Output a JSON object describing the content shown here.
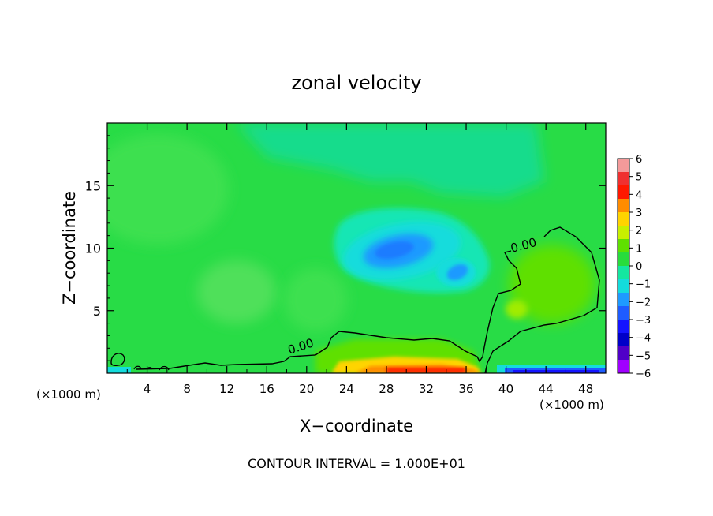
{
  "chart_data": {
    "type": "heatmap",
    "title": "zonal velocity",
    "xlabel": "X−coordinate",
    "ylabel": "Z−coordinate",
    "x_unit_left": "(×1000 m)",
    "x_unit_right": "(×1000 m)",
    "footer": "CONTOUR INTERVAL = 1.000E+01",
    "xlim": [
      0,
      50
    ],
    "ylim": [
      0,
      20
    ],
    "x_ticks": [
      4,
      8,
      12,
      16,
      20,
      24,
      28,
      32,
      36,
      40,
      44,
      48
    ],
    "x_tick_labels": [
      "4",
      "8",
      "12",
      "16",
      "20",
      "24",
      "28",
      "32",
      "36",
      "40",
      "44",
      "48"
    ],
    "y_ticks": [
      5,
      10,
      15
    ],
    "y_tick_labels": [
      "5",
      "10",
      "15"
    ],
    "colorbar": {
      "values": [
        6,
        5,
        4,
        3,
        2,
        1,
        0,
        -1,
        -2,
        -3,
        -4,
        -5,
        -6
      ],
      "labels": [
        "6",
        "5",
        "4",
        "3",
        "2",
        "1",
        "0",
        "−1",
        "−2",
        "−3",
        "−4",
        "−5",
        "−6"
      ],
      "colors": [
        "#f49a9a",
        "#f03030",
        "#ff1800",
        "#ff8c00",
        "#ffd400",
        "#c8f000",
        "#5fe000",
        "#28dc3c",
        "#14e6a0",
        "#14dcdc",
        "#1e9aff",
        "#1e5cff",
        "#1414ff",
        "#0000c8",
        "#5000c8",
        "#a000ff"
      ]
    },
    "contour_labels": [
      "0.00",
      "0.00"
    ],
    "field_description_values": {
      "background": 0,
      "upper_jet_min": -2.5,
      "secondary_min": -2.5,
      "surface_max": 5,
      "surface_min": -5
    }
  }
}
